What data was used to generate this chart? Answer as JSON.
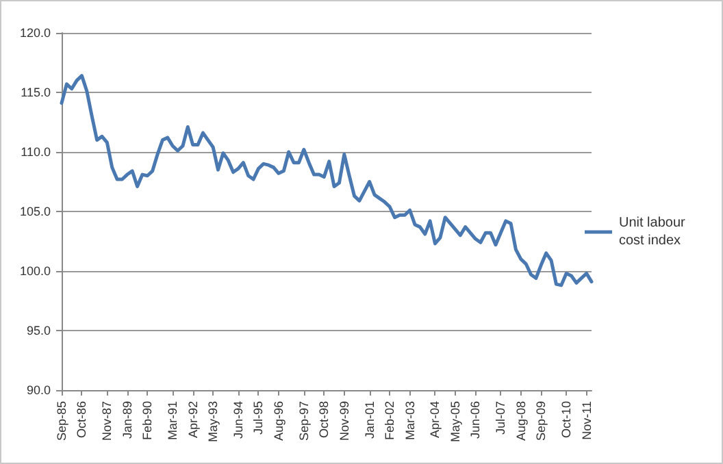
{
  "chart_data": {
    "type": "line",
    "categories": [
      "Sep-85",
      null,
      null,
      null,
      "Oct-86",
      null,
      null,
      null,
      null,
      "Nov-87",
      null,
      null,
      null,
      "Jan-89",
      null,
      null,
      null,
      "Feb-90",
      null,
      null,
      null,
      null,
      "Mar-91",
      null,
      null,
      null,
      "Apr-92",
      null,
      null,
      null,
      "May-93",
      null,
      null,
      null,
      null,
      "Jun-94",
      null,
      null,
      null,
      "Jul-95",
      null,
      null,
      null,
      "Aug-96",
      null,
      null,
      null,
      null,
      "Sep-97",
      null,
      null,
      null,
      "Oct-98",
      null,
      null,
      null,
      "Nov-99",
      null,
      null,
      null,
      null,
      "Jan-01",
      null,
      null,
      null,
      "Feb-02",
      null,
      null,
      null,
      "Mar-03",
      null,
      null,
      null,
      null,
      "Apr-04",
      null,
      null,
      null,
      "May-05",
      null,
      null,
      null,
      "Jun-06",
      null,
      null,
      null,
      null,
      "Jul-07",
      null,
      null,
      null,
      "Aug-08",
      null,
      null,
      null,
      "Sep-09",
      null,
      null,
      null,
      null,
      "Oct-10",
      null,
      null,
      null,
      "Nov-11",
      null
    ],
    "series": [
      {
        "name": "Unit labour cost index",
        "color": "#4a78b0",
        "values": [
          114.1,
          115.7,
          115.3,
          116.0,
          116.4,
          115.1,
          113.0,
          111.0,
          111.3,
          110.8,
          108.7,
          107.7,
          107.7,
          108.1,
          108.4,
          107.1,
          108.1,
          108.0,
          108.4,
          109.8,
          111.0,
          111.2,
          110.5,
          110.1,
          110.5,
          112.1,
          110.6,
          110.6,
          111.6,
          111.0,
          110.4,
          108.5,
          109.9,
          109.3,
          108.3,
          108.6,
          109.1,
          108.0,
          107.7,
          108.6,
          109.0,
          108.9,
          108.7,
          108.2,
          108.4,
          110.0,
          109.1,
          109.1,
          110.2,
          109.1,
          108.1,
          108.1,
          107.9,
          109.2,
          107.1,
          107.4,
          109.8,
          108.0,
          106.3,
          105.9,
          106.7,
          107.5,
          106.4,
          106.1,
          105.8,
          105.4,
          104.5,
          104.7,
          104.7,
          105.1,
          103.9,
          103.7,
          103.1,
          104.2,
          102.3,
          102.8,
          104.5,
          104.0,
          103.5,
          103.0,
          103.7,
          103.2,
          102.7,
          102.4,
          103.2,
          103.2,
          102.2,
          103.2,
          104.2,
          104.0,
          101.8,
          101.0,
          100.6,
          99.7,
          99.4,
          100.5,
          101.5,
          100.9,
          98.9,
          98.8,
          99.8,
          99.6,
          99.0,
          99.4,
          99.8,
          99.1
        ]
      }
    ],
    "ylim": [
      90,
      120
    ],
    "yticks": [
      {
        "value": 90,
        "label": "90.0"
      },
      {
        "value": 95,
        "label": "95.0"
      },
      {
        "value": 100,
        "label": "100.0"
      },
      {
        "value": 105,
        "label": "105.0"
      },
      {
        "value": 110,
        "label": "110.0"
      },
      {
        "value": 115,
        "label": "115.0"
      },
      {
        "value": 120,
        "label": "120.0"
      }
    ],
    "grid": "y",
    "legend": "right",
    "marker": "none",
    "line_style": "solid"
  }
}
